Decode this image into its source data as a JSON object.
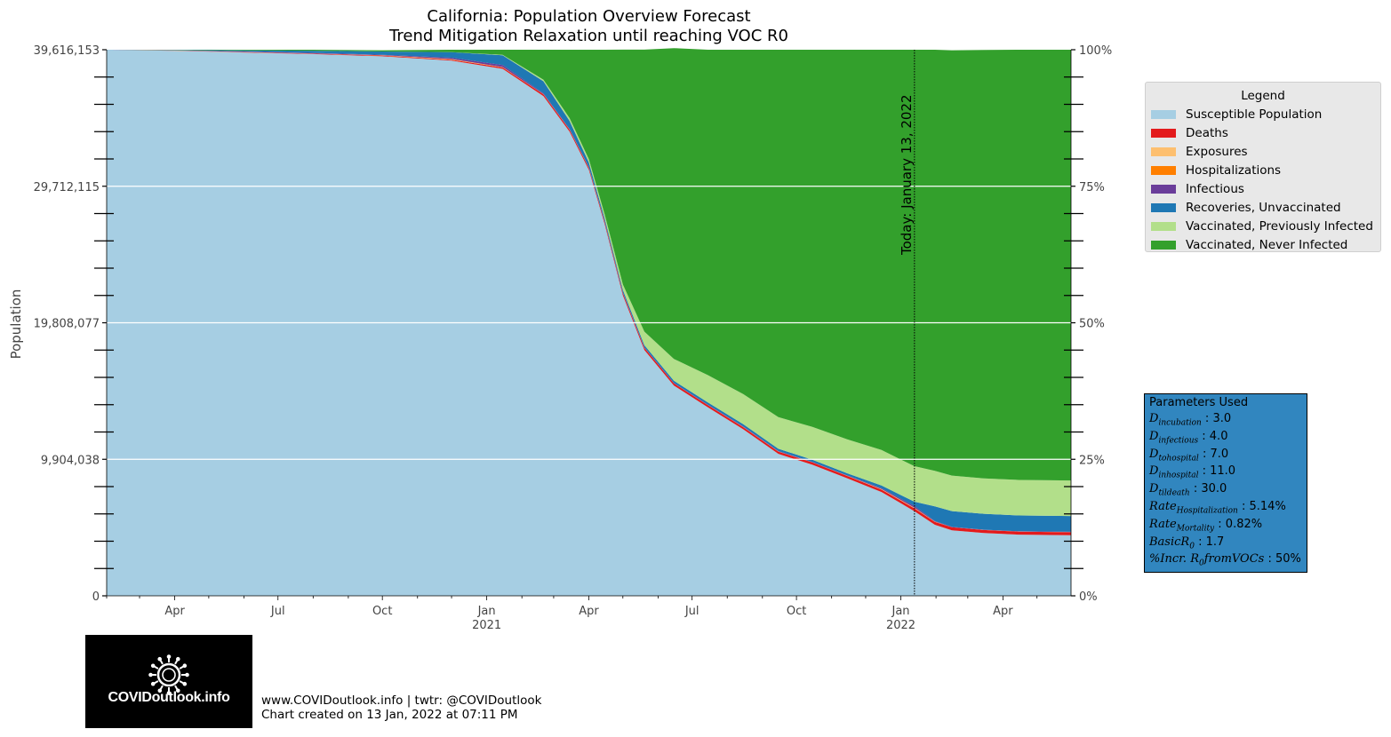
{
  "title_line1": "California: Population Overview Forecast",
  "title_line2": "Trend Mitigation Relaxation until reaching VOC R0",
  "ylabel": "Population",
  "today_label": "Today: January 13, 2022",
  "legend": {
    "title": "Legend",
    "items": [
      {
        "label": "Susceptible Population",
        "color": "#a6cee3"
      },
      {
        "label": "Deaths",
        "color": "#e31a1c"
      },
      {
        "label": "Exposures",
        "color": "#fdbf6f"
      },
      {
        "label": "Hospitalizations",
        "color": "#ff7f00"
      },
      {
        "label": "Infectious",
        "color": "#6a3d9a"
      },
      {
        "label": "Recoveries, Unvaccinated",
        "color": "#1f78b4"
      },
      {
        "label": "Vaccinated, Previously Infected",
        "color": "#b2df8a"
      },
      {
        "label": "Vaccinated, Never Infected",
        "color": "#33a02c"
      }
    ]
  },
  "params": {
    "title": "Parameters Used",
    "items": [
      {
        "sym": "D",
        "sub": "incubation",
        "val": "3.0"
      },
      {
        "sym": "D",
        "sub": "infectious",
        "val": "4.0"
      },
      {
        "sym": "D",
        "sub": "tohospital",
        "val": "7.0"
      },
      {
        "sym": "D",
        "sub": "inhospital",
        "val": "11.0"
      },
      {
        "sym": "D",
        "sub": "tildeath",
        "val": "30.0"
      },
      {
        "sym": "Rate",
        "sub": "Hospitalization",
        "val": "5.14%"
      },
      {
        "sym": "Rate",
        "sub": "Mortality",
        "val": "0.82%"
      },
      {
        "sym": "BasicR",
        "sub": "0",
        "val": "1.7"
      },
      {
        "sym": "%Incr. R",
        "sub": "0",
        "tail": "fromVOCs",
        "val": "50%"
      }
    ]
  },
  "logo_text": "COVIDoutlook.info",
  "footer_line1": "www.COVIDoutlook.info | twtr: @COVIDoutlook",
  "footer_line2": "Chart created on 13 Jan, 2022 at 07:11 PM",
  "chart_data": {
    "type": "area",
    "stacked": true,
    "population_total": 39616153,
    "y_ticks_left": [
      "0",
      "9,904,038",
      "19,808,077",
      "29,712,115",
      "39,616,153"
    ],
    "y_ticks_right": [
      "0%",
      "25%",
      "50%",
      "75%",
      "100%"
    ],
    "x_ticks": [
      {
        "month": "Apr",
        "year": ""
      },
      {
        "month": "Jul",
        "year": ""
      },
      {
        "month": "Oct",
        "year": ""
      },
      {
        "month": "Jan",
        "year": "2021"
      },
      {
        "month": "Apr",
        "year": ""
      },
      {
        "month": "Jul",
        "year": ""
      },
      {
        "month": "Oct",
        "year": ""
      },
      {
        "month": "Jan",
        "year": "2022"
      },
      {
        "month": "Apr",
        "year": ""
      }
    ],
    "x_range": [
      "2020-02-01",
      "2022-05-31"
    ],
    "today": "2022-01-13",
    "x": [
      "2020-02-01",
      "2020-04-01",
      "2020-06-01",
      "2020-08-01",
      "2020-10-01",
      "2020-12-01",
      "2021-01-15",
      "2021-02-20",
      "2021-03-15",
      "2021-04-01",
      "2021-04-15",
      "2021-05-01",
      "2021-05-20",
      "2021-06-15",
      "2021-07-15",
      "2021-08-15",
      "2021-09-15",
      "2021-10-15",
      "2021-11-15",
      "2021-12-15",
      "2022-01-13",
      "2022-01-31",
      "2022-02-15",
      "2022-03-15",
      "2022-04-15",
      "2022-05-31"
    ],
    "series": [
      {
        "name": "Susceptible Population",
        "values": [
          100,
          99.8,
          99.5,
          99.2,
          98.8,
          98.0,
          96.5,
          91.5,
          85.0,
          78.0,
          68.0,
          55.0,
          45.0,
          38.5,
          34.5,
          30.5,
          26.0,
          24.0,
          21.5,
          19.0,
          15.5,
          13.0,
          12.0,
          11.5,
          11.2,
          11.1
        ]
      },
      {
        "name": "Deaths",
        "values": [
          0,
          0.02,
          0.05,
          0.08,
          0.12,
          0.18,
          0.25,
          0.32,
          0.35,
          0.36,
          0.37,
          0.38,
          0.38,
          0.39,
          0.39,
          0.4,
          0.41,
          0.42,
          0.43,
          0.45,
          0.52,
          0.55,
          0.55,
          0.55,
          0.55,
          0.55
        ]
      },
      {
        "name": "Exposures",
        "values": [
          0,
          0.02,
          0.03,
          0.03,
          0.03,
          0.08,
          0.05,
          0.03,
          0.02,
          0.02,
          0.02,
          0.02,
          0.01,
          0.01,
          0.02,
          0.03,
          0.02,
          0.02,
          0.02,
          0.08,
          0.08,
          0.02,
          0.01,
          0.01,
          0.01,
          0.01
        ]
      },
      {
        "name": "Hospitalizations",
        "values": [
          0,
          0.01,
          0.01,
          0.01,
          0.02,
          0.03,
          0.03,
          0.02,
          0.01,
          0.01,
          0.01,
          0.01,
          0.01,
          0.01,
          0.01,
          0.01,
          0.01,
          0.01,
          0.01,
          0.02,
          0.04,
          0.02,
          0.01,
          0.01,
          0.01,
          0.01
        ]
      },
      {
        "name": "Infectious",
        "values": [
          0,
          0.05,
          0.08,
          0.1,
          0.1,
          0.25,
          0.35,
          0.15,
          0.1,
          0.08,
          0.08,
          0.1,
          0.08,
          0.07,
          0.08,
          0.1,
          0.08,
          0.07,
          0.07,
          0.15,
          0.3,
          0.1,
          0.05,
          0.05,
          0.05,
          0.05
        ]
      },
      {
        "name": "Recoveries, Unvaccinated",
        "values": [
          0,
          0.05,
          0.2,
          0.4,
          0.6,
          1.0,
          1.8,
          2.2,
          1.5,
          0.9,
          0.6,
          0.5,
          0.4,
          0.4,
          0.4,
          0.4,
          0.4,
          0.4,
          0.4,
          0.5,
          0.8,
          2.7,
          2.9,
          2.9,
          2.9,
          2.9
        ]
      },
      {
        "name": "Vaccinated, Previously Infected",
        "values": [
          0,
          0,
          0,
          0,
          0,
          0,
          0.1,
          0.3,
          0.5,
          0.6,
          0.7,
          1.0,
          2.5,
          4.0,
          5.0,
          5.5,
          5.8,
          6.0,
          6.2,
          6.5,
          6.5,
          6.5,
          6.5,
          6.5,
          6.5,
          6.5
        ]
      },
      {
        "name": "Vaccinated, Never Infected",
        "values": [
          0,
          0.05,
          0.13,
          0.18,
          0.23,
          0.46,
          0.92,
          5.48,
          12.52,
          20.03,
          30.22,
          43.0,
          51.63,
          56.92,
          59.6,
          63.06,
          67.28,
          69.08,
          71.37,
          73.3,
          76.26,
          77.11,
          77.88,
          78.43,
          78.78,
          78.88
        ]
      }
    ]
  }
}
